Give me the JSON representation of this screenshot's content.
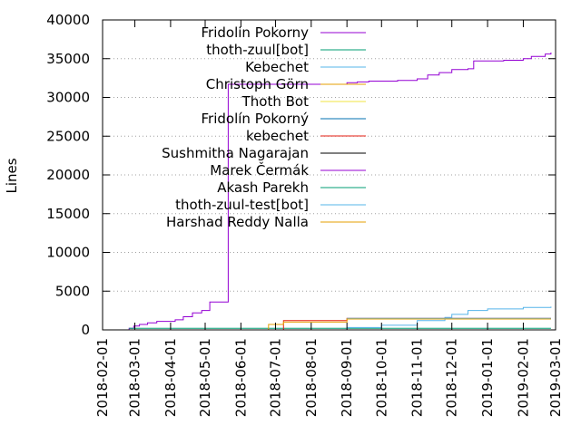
{
  "chart_data": {
    "type": "line",
    "title": "",
    "xlabel": "",
    "ylabel": "Lines",
    "xlim": [
      "2018-02-01",
      "2019-03-01"
    ],
    "ylim": [
      0,
      40000
    ],
    "x_ticks": [
      "2018-02-01",
      "2018-03-01",
      "2018-04-01",
      "2018-05-01",
      "2018-06-01",
      "2018-07-01",
      "2018-08-01",
      "2018-09-01",
      "2018-10-01",
      "2018-11-01",
      "2018-12-01",
      "2019-01-01",
      "2019-02-01",
      "2019-03-01"
    ],
    "y_ticks": [
      "0",
      "5000",
      "10000",
      "15000",
      "20000",
      "25000",
      "30000",
      "35000",
      "40000"
    ],
    "grid": true,
    "legend_position": "top-right inside",
    "series": [
      {
        "name": "Fridolin Pokorny",
        "color": "#9400d3",
        "points": [
          [
            "2018-02-24",
            0
          ],
          [
            "2018-02-24",
            200
          ],
          [
            "2018-02-28",
            500
          ],
          [
            "2018-03-05",
            700
          ],
          [
            "2018-03-12",
            900
          ],
          [
            "2018-03-20",
            1100
          ],
          [
            "2018-04-05",
            1300
          ],
          [
            "2018-04-12",
            1700
          ],
          [
            "2018-04-20",
            2200
          ],
          [
            "2018-04-28",
            2500
          ],
          [
            "2018-05-05",
            3600
          ],
          [
            "2018-05-21",
            3700
          ],
          [
            "2018-05-21",
            31700
          ],
          [
            "2018-08-10",
            31700
          ],
          [
            "2018-09-01",
            31900
          ],
          [
            "2018-09-10",
            32000
          ],
          [
            "2018-09-20",
            32100
          ],
          [
            "2018-10-15",
            32200
          ],
          [
            "2018-11-01",
            32400
          ],
          [
            "2018-11-10",
            32900
          ],
          [
            "2018-11-20",
            33200
          ],
          [
            "2018-12-01",
            33600
          ],
          [
            "2018-12-15",
            33700
          ],
          [
            "2018-12-20",
            34700
          ],
          [
            "2019-01-15",
            34800
          ],
          [
            "2019-02-01",
            35000
          ],
          [
            "2019-02-08",
            35300
          ],
          [
            "2019-02-20",
            35600
          ],
          [
            "2019-02-25",
            35800
          ]
        ]
      },
      {
        "name": "thoth-zuul[bot]",
        "color": "#009e73",
        "points": [
          [
            "2018-02-24",
            200
          ],
          [
            "2019-02-25",
            200
          ]
        ]
      },
      {
        "name": "Kebechet",
        "color": "#56b4e9",
        "points": [
          [
            "2018-08-01",
            0
          ],
          [
            "2018-09-01",
            300
          ],
          [
            "2018-10-01",
            600
          ],
          [
            "2018-11-01",
            1200
          ],
          [
            "2018-11-25",
            1600
          ],
          [
            "2018-12-01",
            2000
          ],
          [
            "2018-12-15",
            2500
          ],
          [
            "2019-01-01",
            2700
          ],
          [
            "2019-02-01",
            2900
          ],
          [
            "2019-02-25",
            3000
          ]
        ]
      },
      {
        "name": "Christoph Görn",
        "color": "#e69f00",
        "points": [
          [
            "2018-06-15",
            0
          ],
          [
            "2019-02-25",
            0
          ]
        ]
      },
      {
        "name": "Thoth Bot",
        "color": "#f0e442",
        "points": [
          [
            "2018-06-15",
            0
          ],
          [
            "2019-02-25",
            0
          ]
        ]
      },
      {
        "name": "Fridolín Pokorný",
        "color": "#0072b2",
        "points": [
          [
            "2018-06-15",
            0
          ],
          [
            "2019-02-25",
            0
          ]
        ]
      },
      {
        "name": "kebechet",
        "color": "#e51e10",
        "points": [
          [
            "2018-07-08",
            0
          ],
          [
            "2018-07-08",
            1200
          ],
          [
            "2018-08-10",
            1200
          ],
          [
            "2018-09-01",
            1500
          ],
          [
            "2019-02-25",
            1500
          ]
        ]
      },
      {
        "name": "Sushmitha Nagarajan",
        "color": "#000000",
        "points": [
          [
            "2018-07-08",
            0
          ],
          [
            "2019-02-25",
            0
          ]
        ]
      },
      {
        "name": "Marek Čermák",
        "color": "#9400d3",
        "points": [
          [
            "2018-07-08",
            0
          ],
          [
            "2019-02-25",
            0
          ]
        ]
      },
      {
        "name": "Akash Parekh",
        "color": "#009e73",
        "points": [
          [
            "2018-09-01",
            1400
          ],
          [
            "2019-02-25",
            1400
          ]
        ]
      },
      {
        "name": "thoth-zuul-test[bot]",
        "color": "#56b4e9",
        "points": [
          [
            "2018-09-01",
            1500
          ],
          [
            "2019-02-25",
            1500
          ]
        ]
      },
      {
        "name": "Harshad Reddy Nalla",
        "color": "#e69f00",
        "points": [
          [
            "2018-06-25",
            0
          ],
          [
            "2018-06-25",
            700
          ],
          [
            "2018-07-08",
            1000
          ],
          [
            "2018-09-01",
            1400
          ],
          [
            "2019-02-25",
            1400
          ]
        ]
      }
    ]
  }
}
